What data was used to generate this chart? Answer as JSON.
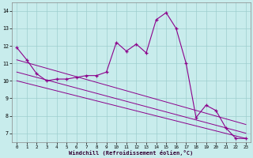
{
  "x_main": [
    0,
    1,
    2,
    3,
    4,
    5,
    6,
    7,
    8,
    9,
    10,
    11,
    12,
    13,
    14,
    15,
    16,
    17,
    18,
    19,
    20,
    21,
    22,
    23
  ],
  "y_main": [
    11.9,
    11.2,
    10.4,
    10.0,
    10.1,
    10.1,
    10.2,
    10.3,
    10.3,
    10.5,
    12.2,
    11.7,
    12.1,
    11.6,
    13.5,
    13.9,
    13.0,
    11.0,
    7.9,
    8.6,
    8.3,
    7.3,
    6.7,
    6.7
  ],
  "line1_start": 11.2,
  "line1_end": 7.5,
  "line2_start": 10.5,
  "line2_end": 7.0,
  "line3_start": 10.0,
  "line3_end": 6.7,
  "color": "#8B008B",
  "bg_color": "#c8ecec",
  "grid_color": "#9ecece",
  "ylim": [
    6.5,
    14.5
  ],
  "xlim": [
    -0.5,
    23.5
  ],
  "yticks": [
    7,
    8,
    9,
    10,
    11,
    12,
    13,
    14
  ],
  "xticks": [
    0,
    1,
    2,
    3,
    4,
    5,
    6,
    7,
    8,
    9,
    10,
    11,
    12,
    13,
    14,
    15,
    16,
    17,
    18,
    19,
    20,
    21,
    22,
    23
  ],
  "xlabel": "Windchill (Refroidissement éolien,°C)"
}
